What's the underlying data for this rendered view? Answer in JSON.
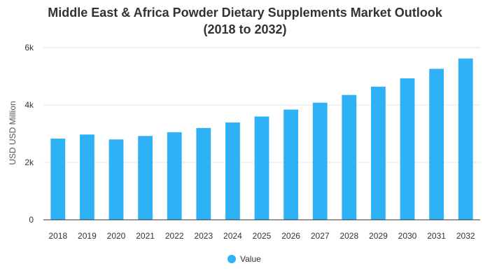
{
  "chart_data": {
    "type": "bar",
    "title_line1": "Middle East & Africa Powder Dietary Supplements Market Outlook",
    "title_line2": "(2018 to 2032)",
    "xlabel": "",
    "ylabel": "USD USD Million",
    "ylim": [
      0,
      6000
    ],
    "yticks": [
      0,
      2000,
      4000,
      6000
    ],
    "ytick_labels": [
      "0",
      "2k",
      "4k",
      "6k"
    ],
    "categories": [
      "2018",
      "2019",
      "2020",
      "2021",
      "2022",
      "2023",
      "2024",
      "2025",
      "2026",
      "2027",
      "2028",
      "2029",
      "2030",
      "2031",
      "2032"
    ],
    "series": [
      {
        "name": "Value",
        "color": "#2eb1f5",
        "values": [
          2830,
          2970,
          2800,
          2920,
          3050,
          3200,
          3390,
          3600,
          3840,
          4080,
          4350,
          4640,
          4930,
          5260,
          5620
        ]
      }
    ],
    "grid": true,
    "legend_position": "bottom-center"
  }
}
